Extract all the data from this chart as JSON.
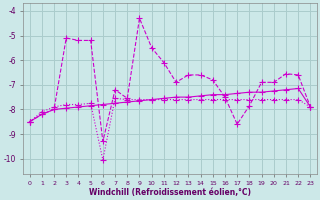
{
  "x": [
    0,
    1,
    2,
    3,
    4,
    5,
    6,
    7,
    8,
    9,
    10,
    11,
    12,
    13,
    14,
    15,
    16,
    17,
    18,
    19,
    20,
    21,
    22,
    23
  ],
  "line1": [
    -8.5,
    -8.2,
    -8.0,
    -5.1,
    -5.2,
    -5.2,
    -9.3,
    -7.2,
    -7.55,
    -4.3,
    -5.5,
    -6.1,
    -6.9,
    -6.6,
    -6.6,
    -6.8,
    -7.5,
    -8.6,
    -7.85,
    -6.9,
    -6.9,
    -6.55,
    -6.6,
    -7.9
  ],
  "line2": [
    -8.5,
    -8.1,
    -7.9,
    -7.8,
    -7.8,
    -7.75,
    -10.05,
    -7.55,
    -7.6,
    -7.6,
    -7.6,
    -7.6,
    -7.6,
    -7.6,
    -7.6,
    -7.6,
    -7.6,
    -7.6,
    -7.6,
    -7.6,
    -7.6,
    -7.6,
    -7.6,
    -7.9
  ],
  "line3": [
    -8.5,
    -8.2,
    -8.0,
    -7.95,
    -7.9,
    -7.85,
    -7.8,
    -7.75,
    -7.7,
    -7.65,
    -7.6,
    -7.55,
    -7.5,
    -7.5,
    -7.45,
    -7.4,
    -7.4,
    -7.35,
    -7.3,
    -7.3,
    -7.25,
    -7.2,
    -7.15,
    -7.9
  ],
  "bg_color": "#cce8e8",
  "grid_color": "#aacccc",
  "line_color": "#cc00cc",
  "xlabel": "Windchill (Refroidissement éolien,°C)",
  "ylim": [
    -10.6,
    -3.7
  ],
  "xlim": [
    -0.5,
    23.5
  ],
  "yticks": [
    -10,
    -9,
    -8,
    -7,
    -6,
    -5,
    -4
  ],
  "xticks": [
    0,
    1,
    2,
    3,
    4,
    5,
    6,
    7,
    8,
    9,
    10,
    11,
    12,
    13,
    14,
    15,
    16,
    17,
    18,
    19,
    20,
    21,
    22,
    23
  ]
}
